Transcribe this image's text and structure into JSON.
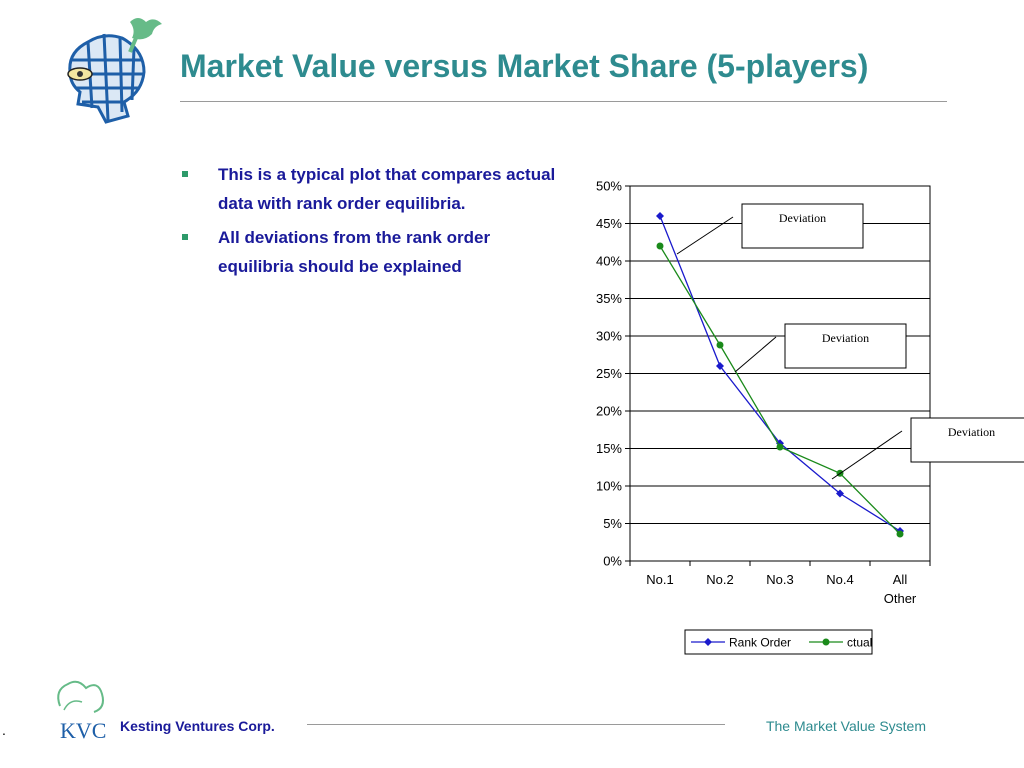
{
  "slide": {
    "title": "Market Value versus Market Share (5-players)",
    "bullets": [
      "This is a typical plot that compares actual data with rank order equilibria.",
      "All deviations from the rank order equilibria should be explained"
    ]
  },
  "footer": {
    "dot": ".",
    "company": "Kesting Ventures Corp.",
    "tagline": "The Market Value System",
    "logo_text": "KVC"
  },
  "colors": {
    "title": "#2e8b8f",
    "bullet_text": "#1a1a9a",
    "bullet_marker": "#2e9a6a",
    "rank_order_series": "#1a1acc",
    "actual_series": "#1a8a1a",
    "logo_blue": "#1e5fa8",
    "logo_green": "#66bb88"
  },
  "icons": {
    "header_logo": "globe-head-logo-icon",
    "footer_logo": "kvc-logo-icon"
  },
  "chart_data": {
    "type": "line",
    "categories": [
      "No.1",
      "No.2",
      "No.3",
      "No.4",
      "All Other"
    ],
    "series": [
      {
        "name": "Rank Order",
        "values": [
          0.46,
          0.26,
          0.157,
          0.09,
          0.04
        ],
        "marker": "diamond",
        "color": "#1a1acc"
      },
      {
        "name": "ctual",
        "values": [
          0.42,
          0.288,
          0.152,
          0.117,
          0.036
        ],
        "marker": "circle",
        "color": "#1a8a1a"
      }
    ],
    "ylim": [
      0,
      0.5
    ],
    "yticks": [
      "0%",
      "5%",
      "10%",
      "15%",
      "20%",
      "25%",
      "30%",
      "35%",
      "40%",
      "45%",
      "50%"
    ],
    "grid": true,
    "legend": "bottom",
    "annotations": [
      {
        "text": "Deviation",
        "category": "No.1"
      },
      {
        "text": "Deviation",
        "category": "No.2"
      },
      {
        "text": "Deviation",
        "category": "No.4"
      }
    ]
  }
}
